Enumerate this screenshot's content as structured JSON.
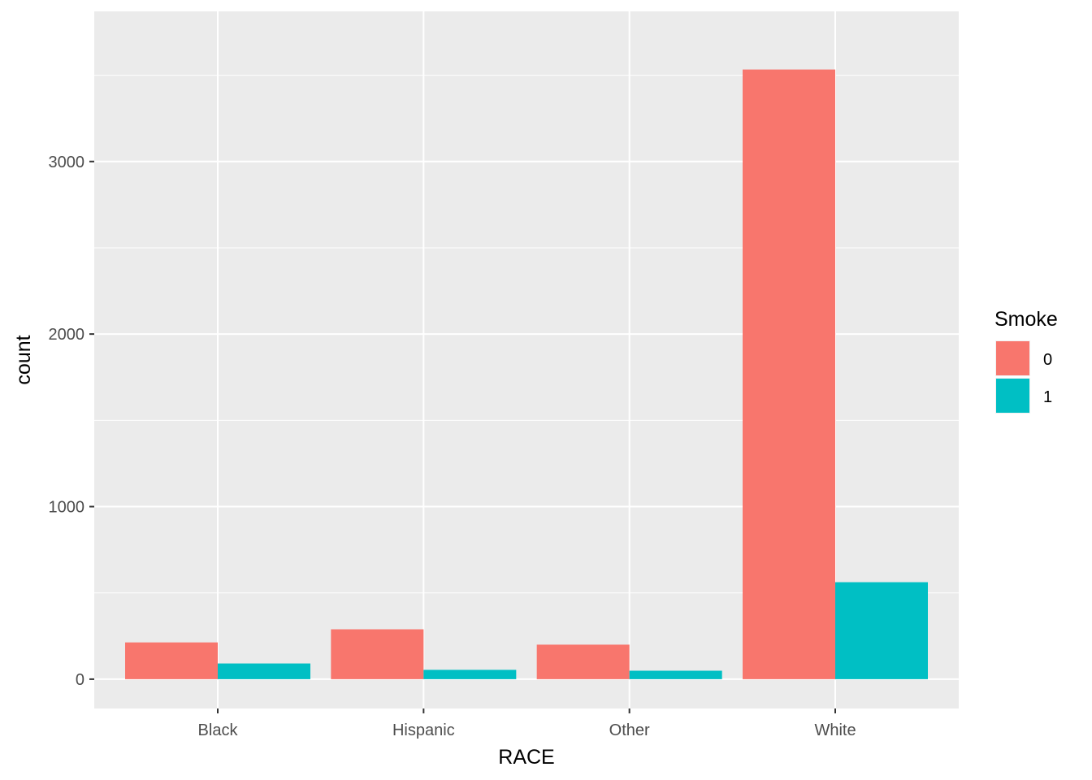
{
  "chart_data": {
    "type": "bar",
    "title": "",
    "xlabel": "RACE",
    "ylabel": "count",
    "categories": [
      "Black",
      "Hispanic",
      "Other",
      "White"
    ],
    "ylim": [
      -170,
      3870
    ],
    "yticks": [
      0,
      1000,
      2000,
      3000
    ],
    "grid": true,
    "legend": {
      "title": "Smoke",
      "placement": "right"
    },
    "series": [
      {
        "name": "0",
        "color": "#F8766D",
        "values": [
          213,
          289,
          200,
          3533
        ]
      },
      {
        "name": "1",
        "color": "#00BFC4",
        "values": [
          91,
          54,
          49,
          562
        ]
      }
    ]
  }
}
